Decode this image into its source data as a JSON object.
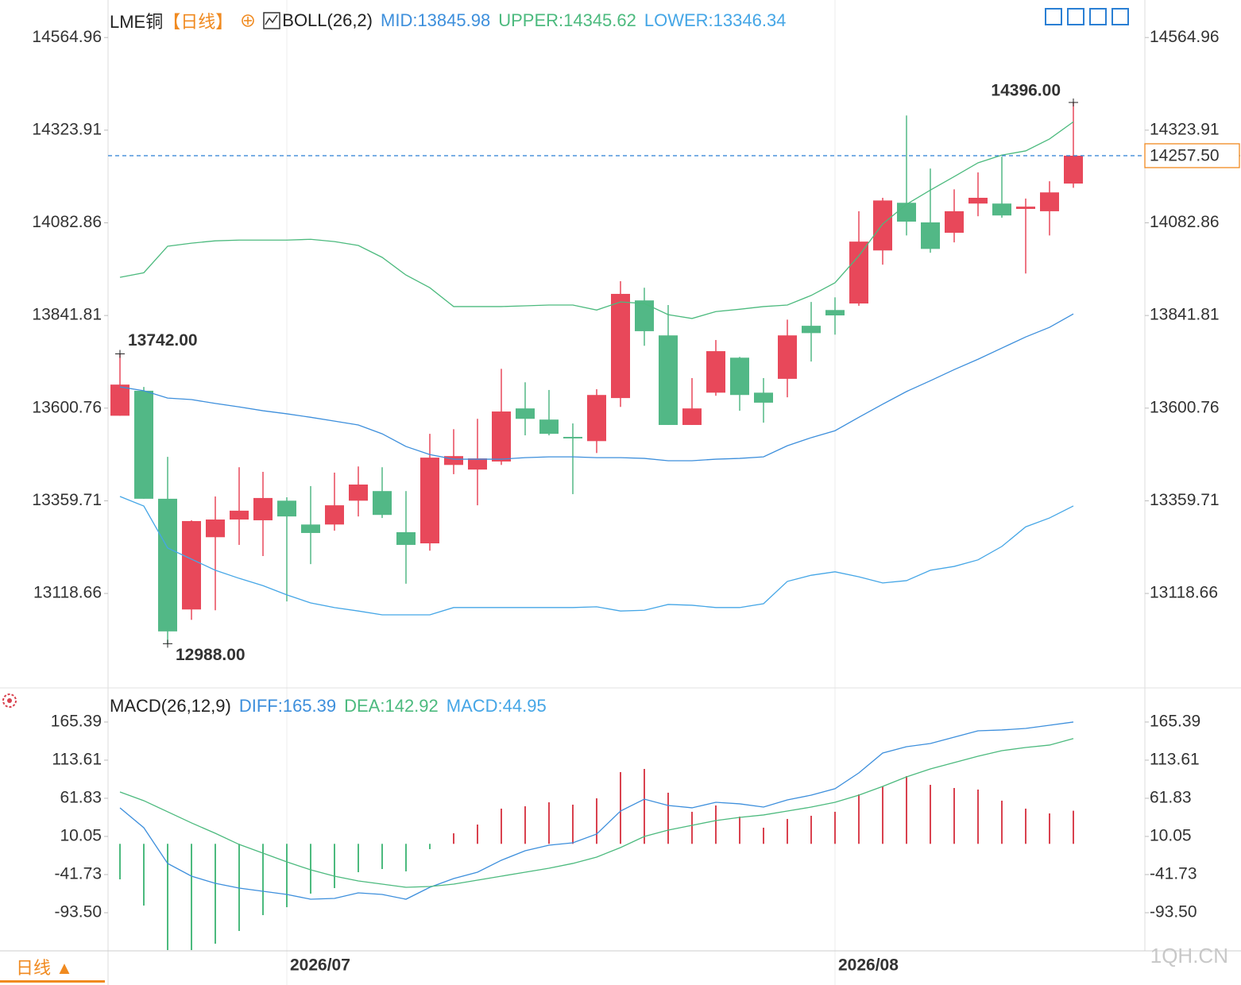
{
  "chart_data": [
    {
      "type": "candlestick",
      "title": "LME铜",
      "period": "【日线】",
      "indicator": "BOLL(26,2)",
      "open": [
        13581,
        13646,
        13365,
        13077,
        13265,
        13311,
        13309,
        13360,
        13298,
        13298,
        13360,
        13385,
        13278,
        13249,
        13453,
        13441,
        13462,
        13600,
        13571,
        13526,
        13515,
        13627,
        13881,
        13790,
        13557,
        13641,
        13732,
        13641,
        13677,
        13815,
        13856,
        13873,
        14011,
        14135,
        14084,
        14057,
        14133,
        14133,
        14119,
        14113,
        14185
      ],
      "high": [
        13742,
        13656,
        13474,
        13309,
        13371,
        13447,
        13435,
        13369,
        13398,
        13433,
        13449,
        13447,
        13385,
        13534,
        13546,
        13573,
        13703,
        13668,
        13648,
        13561,
        13650,
        13931,
        13914,
        13869,
        13679,
        13778,
        13734,
        13679,
        13831,
        13877,
        13889,
        14113,
        14148,
        14362,
        14224,
        14170,
        14214,
        14255,
        14146,
        14191,
        14396
      ],
      "low": [
        13581,
        13365,
        12988,
        13050,
        13075,
        13245,
        13216,
        13098,
        13195,
        13282,
        13319,
        13315,
        13144,
        13230,
        13429,
        13348,
        13453,
        13530,
        13530,
        13377,
        13484,
        13604,
        13763,
        13557,
        13557,
        13633,
        13594,
        13563,
        13629,
        13722,
        13792,
        13867,
        13974,
        14050,
        14005,
        14032,
        14100,
        14096,
        13951,
        14050,
        14174
      ],
      "close": [
        13662,
        13365,
        13020,
        13307,
        13311,
        13334,
        13367,
        13319,
        13276,
        13348,
        13402,
        13323,
        13245,
        13472,
        13476,
        13470,
        13592,
        13573,
        13534,
        13522,
        13635,
        13898,
        13801,
        13557,
        13600,
        13749,
        13635,
        13615,
        13790,
        13796,
        13842,
        14034,
        14141,
        14086,
        14015,
        14113,
        14148,
        14102,
        14125,
        14162,
        14257.5
      ],
      "up_color": "#e8485a",
      "down_color": "#52b886",
      "series": [
        {
          "name": "MID:13845.98",
          "color": "#3d8fdc",
          "values": [
            13656,
            13646,
            13627,
            13623,
            13613,
            13604,
            13594,
            13586,
            13577,
            13567,
            13557,
            13534,
            13501,
            13480,
            13468,
            13468,
            13468,
            13472,
            13474,
            13474,
            13472,
            13472,
            13470,
            13464,
            13464,
            13468,
            13470,
            13474,
            13503,
            13524,
            13542,
            13577,
            13611,
            13644,
            13672,
            13701,
            13728,
            13757,
            13786,
            13811,
            13845.98
          ]
        },
        {
          "name": "UPPER:14345.62",
          "color": "#4cba7e",
          "values": [
            13941,
            13953,
            14022,
            14030,
            14036,
            14038,
            14038,
            14038,
            14040,
            14034,
            14024,
            13993,
            13947,
            13914,
            13865,
            13865,
            13865,
            13867,
            13869,
            13869,
            13856,
            13877,
            13873,
            13844,
            13834,
            13852,
            13858,
            13865,
            13869,
            13894,
            13927,
            13997,
            14080,
            14131,
            14168,
            14203,
            14239,
            14259,
            14270,
            14301,
            14345.62
          ]
        },
        {
          "name": "LOWER:13346.34",
          "color": "#45a6e6",
          "values": [
            13371,
            13346,
            13237,
            13208,
            13179,
            13158,
            13139,
            13115,
            13094,
            13082,
            13073,
            13063,
            13063,
            13063,
            13082,
            13082,
            13082,
            13082,
            13082,
            13082,
            13084,
            13073,
            13075,
            13090,
            13088,
            13082,
            13082,
            13092,
            13150,
            13166,
            13175,
            13162,
            13146,
            13152,
            13179,
            13189,
            13206,
            13241,
            13292,
            13315,
            13346.34
          ]
        }
      ],
      "annotations": [
        {
          "value": 13742,
          "label": "13742.00",
          "color": "#e8485a"
        },
        {
          "value": 12988,
          "label": "12988.00",
          "color": "#52b886"
        },
        {
          "value": 14396,
          "label": "14396.00",
          "color": "#e8485a"
        }
      ],
      "last_price": {
        "value": 14257.5,
        "label": "14257.50",
        "color": "#f08a20"
      },
      "ylim": [
        12875,
        14646
      ],
      "yticks": [
        14564.96,
        14323.91,
        14082.86,
        13841.81,
        13600.76,
        13359.71,
        13118.66
      ],
      "grid": false
    },
    {
      "type": "macd",
      "title": "MACD(26,12,9)",
      "categories": [
        null,
        null,
        null,
        null,
        null,
        null,
        null,
        "2026/07",
        null,
        null,
        null,
        null,
        null,
        null,
        null,
        null,
        null,
        null,
        null,
        null,
        null,
        null,
        null,
        null,
        null,
        null,
        null,
        null,
        null,
        null,
        "2026/08",
        null,
        null,
        null,
        null,
        null,
        null,
        null,
        null,
        null,
        null
      ],
      "series": [
        {
          "name": "DIFF:165.39",
          "color": "#3d8fdc",
          "type": "line",
          "values": [
            48.9,
            21.9,
            -26.6,
            -43.9,
            -53.6,
            -60.1,
            -64.4,
            -68.7,
            -75.2,
            -74.1,
            -66.6,
            -68.7,
            -75.2,
            -59.0,
            -47.1,
            -38.5,
            -22.3,
            -9.4,
            -1.8,
            1.4,
            13.3,
            44.5,
            60.7,
            52.1,
            48.9,
            56.4,
            54.3,
            49.9,
            59.6,
            66.1,
            74.8,
            96.3,
            123.3,
            131.9,
            136.2,
            144.9,
            153.5,
            154.6,
            156.7,
            161.0,
            165.39
          ]
        },
        {
          "name": "DEA:142.92",
          "color": "#4cba7e",
          "type": "line",
          "values": [
            70.4,
            58.6,
            43.5,
            28.4,
            14.3,
            -0.8,
            -12.6,
            -24.5,
            -35.3,
            -43.9,
            -50.4,
            -54.7,
            -59.0,
            -57.9,
            -54.7,
            -49.3,
            -43.9,
            -38.5,
            -33.1,
            -26.6,
            -18.0,
            -5.1,
            10.0,
            18.7,
            25.1,
            31.6,
            35.9,
            39.2,
            44.5,
            49.9,
            56.4,
            66.1,
            78.0,
            90.9,
            101.7,
            110.3,
            119.0,
            126.5,
            130.8,
            134.1,
            142.92
          ]
        },
        {
          "name": "MACD:44.95",
          "color": "#45a6e6",
          "type": "bar",
          "up_color": "#d9424f",
          "down_color": "#4cba7e",
          "values": [
            -48.2,
            -83.8,
            -144.2,
            -144.2,
            -135.6,
            -118.3,
            -96.8,
            -86.0,
            -67.6,
            -60.1,
            -38.5,
            -34.2,
            -37.4,
            -7.2,
            14.3,
            26.2,
            47.8,
            51.0,
            56.4,
            53.2,
            61.8,
            97.4,
            101.7,
            69.4,
            43.5,
            52.1,
            37.0,
            21.9,
            33.8,
            38.1,
            43.5,
            67.2,
            78.0,
            92.0,
            80.1,
            75.8,
            73.7,
            58.6,
            47.8,
            41.3,
            44.95
          ]
        }
      ],
      "ylim": [
        -145.3,
        207.4
      ],
      "yticks": [
        165.39,
        113.61,
        61.83,
        10.05,
        -41.73,
        {
          "value": -93.5,
          "label": "-93.50"
        }
      ],
      "grid": false
    }
  ],
  "footer": {
    "period_button": "日线 ▲",
    "watermark": "1QH.CN"
  }
}
